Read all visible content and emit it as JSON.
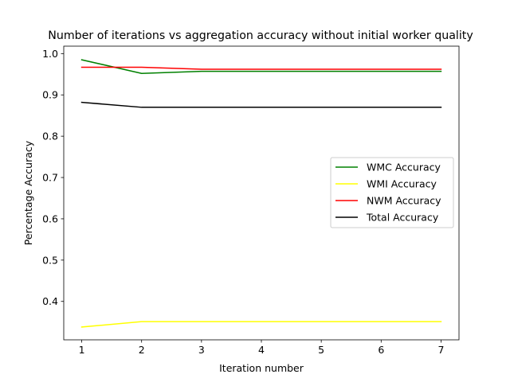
{
  "chart_data": {
    "type": "line",
    "title": "Number of iterations vs aggregation accuracy without initial worker quality",
    "xlabel": "Iteration number",
    "ylabel": "Percentage Accuracy",
    "x": [
      1,
      2,
      3,
      4,
      5,
      6,
      7
    ],
    "xlim": [
      0.7,
      7.3
    ],
    "ylim": [
      0.307,
      1.018
    ],
    "xticks": [
      1,
      2,
      3,
      4,
      5,
      6,
      7
    ],
    "yticks": [
      0.4,
      0.5,
      0.6,
      0.7,
      0.8,
      0.9,
      1.0
    ],
    "ytick_labels": [
      "0.4",
      "0.5",
      "0.6",
      "0.7",
      "0.8",
      "0.9",
      "1.0"
    ],
    "grid": false,
    "legend_position": "center-right",
    "series": [
      {
        "name": "WMC Accuracy",
        "color": "#008000",
        "values": [
          0.985,
          0.952,
          0.957,
          0.957,
          0.957,
          0.957,
          0.957
        ]
      },
      {
        "name": "WMI Accuracy",
        "color": "#ffff00",
        "values": [
          0.338,
          0.351,
          0.351,
          0.351,
          0.351,
          0.351,
          0.351
        ]
      },
      {
        "name": "NWM Accuracy",
        "color": "#ff0000",
        "values": [
          0.967,
          0.967,
          0.962,
          0.962,
          0.962,
          0.962,
          0.962
        ]
      },
      {
        "name": "Total Accuracy",
        "color": "#000000",
        "values": [
          0.882,
          0.87,
          0.87,
          0.87,
          0.87,
          0.87,
          0.87
        ]
      }
    ]
  }
}
